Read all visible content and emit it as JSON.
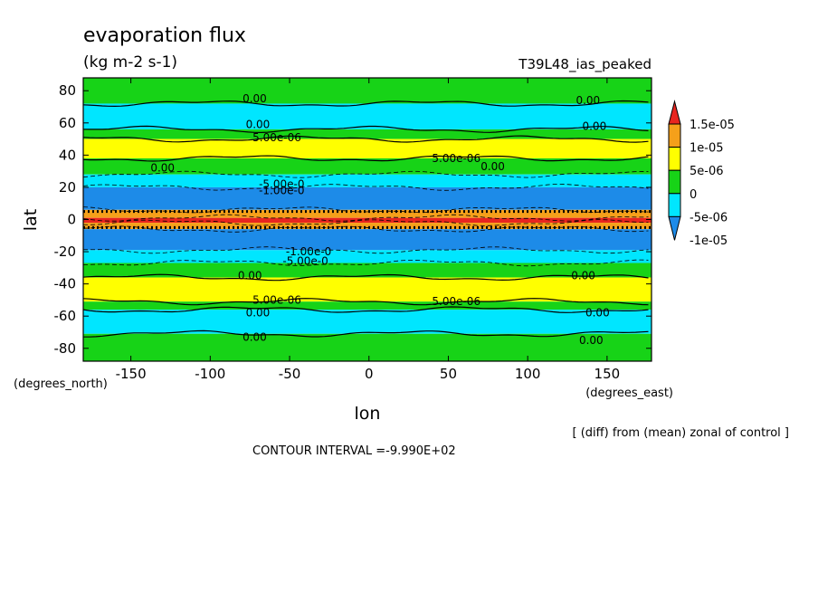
{
  "chart_data": {
    "type": "heatmap",
    "title": "evaporation flux",
    "units": "(kg m-2 s-1)",
    "run_label": "T39L48_ias_peaked",
    "xlabel": "lon",
    "ylabel": "lat",
    "x_units": "(degrees_east)",
    "y_units": "(degrees_north)",
    "xlim": [
      -180,
      178
    ],
    "ylim": [
      -88,
      88
    ],
    "x_ticks": [
      -150,
      -100,
      -50,
      0,
      50,
      100,
      150
    ],
    "y_ticks": [
      80,
      60,
      40,
      20,
      0,
      -20,
      -40,
      -60,
      -80
    ],
    "x_tick_labels": [
      "-150",
      "-100",
      "-50",
      "0",
      "50",
      "100",
      "150"
    ],
    "y_tick_labels": [
      "80",
      "60",
      "40",
      "20",
      "0",
      "-20",
      "-40",
      "-60",
      "-80"
    ],
    "colorbar": {
      "levels": [
        "1.5e-05",
        "1e-05",
        "5e-06",
        "0",
        "-5e-06",
        "-1e-05"
      ],
      "colors": [
        "#e8251f",
        "#f5a01a",
        "#ffff00",
        "#17d317",
        "#00e6ff",
        "#1d8be8"
      ]
    },
    "bands": [
      {
        "lat_min": 72,
        "lat_max": 88,
        "value": 2e-06
      },
      {
        "lat_min": 56,
        "lat_max": 72,
        "value": -3e-06
      },
      {
        "lat_min": 50,
        "lat_max": 56,
        "value": 2e-06
      },
      {
        "lat_min": 38,
        "lat_max": 50,
        "value": 7e-06
      },
      {
        "lat_min": 28,
        "lat_max": 38,
        "value": 2e-06
      },
      {
        "lat_min": 20,
        "lat_max": 28,
        "value": -4e-06
      },
      {
        "lat_min": 6,
        "lat_max": 20,
        "value": -1.1e-05
      },
      {
        "lat_min": 1,
        "lat_max": 6,
        "value": 1.1e-05
      },
      {
        "lat_min": -2,
        "lat_max": 1,
        "value": 1.6e-05
      },
      {
        "lat_min": -6,
        "lat_max": -2,
        "value": 1.1e-05
      },
      {
        "lat_min": -19,
        "lat_max": -6,
        "value": -1.1e-05
      },
      {
        "lat_min": -27,
        "lat_max": -19,
        "value": -4e-06
      },
      {
        "lat_min": -36,
        "lat_max": -27,
        "value": 2e-06
      },
      {
        "lat_min": -51,
        "lat_max": -36,
        "value": 7e-06
      },
      {
        "lat_min": -56,
        "lat_max": -51,
        "value": 2e-06
      },
      {
        "lat_min": -71,
        "lat_max": -56,
        "value": -3e-06
      },
      {
        "lat_min": -88,
        "lat_max": -71,
        "value": 2e-06
      }
    ],
    "contour_labels": [
      {
        "text": "0.00",
        "lon": -72,
        "lat": 75
      },
      {
        "text": "0.00",
        "lon": 138,
        "lat": 74
      },
      {
        "text": "0.00",
        "lon": -70,
        "lat": 59
      },
      {
        "text": "0.00",
        "lon": 142,
        "lat": 58
      },
      {
        "text": "5.00e-06",
        "lon": -58,
        "lat": 51
      },
      {
        "text": "5.00e-06",
        "lon": 55,
        "lat": 38
      },
      {
        "text": "0.00",
        "lon": 78,
        "lat": 33
      },
      {
        "text": "0.00",
        "lon": -130,
        "lat": 32
      },
      {
        "text": "-5.00e-0",
        "lon": -55,
        "lat": 22
      },
      {
        "text": "-1.00e-0",
        "lon": -55,
        "lat": 18
      },
      {
        "text": "-1.00e-0",
        "lon": -38,
        "lat": -20
      },
      {
        "text": "-5.00e-0",
        "lon": -40,
        "lat": -26
      },
      {
        "text": "0.00",
        "lon": -75,
        "lat": -35
      },
      {
        "text": "0.00",
        "lon": 135,
        "lat": -35
      },
      {
        "text": "5.00e-06",
        "lon": -58,
        "lat": -50
      },
      {
        "text": "5.00e-06",
        "lon": 55,
        "lat": -51
      },
      {
        "text": "0.00",
        "lon": -70,
        "lat": -58
      },
      {
        "text": "0.00",
        "lon": 144,
        "lat": -58
      },
      {
        "text": "0.00",
        "lon": -72,
        "lat": -73
      },
      {
        "text": "0.00",
        "lon": 140,
        "lat": -75
      }
    ],
    "grid": false,
    "legend": "colorbar-right"
  },
  "footnote": "[ (diff) from (mean) zonal of control ]",
  "contour_interval": "CONTOUR INTERVAL =-9.990E+02"
}
